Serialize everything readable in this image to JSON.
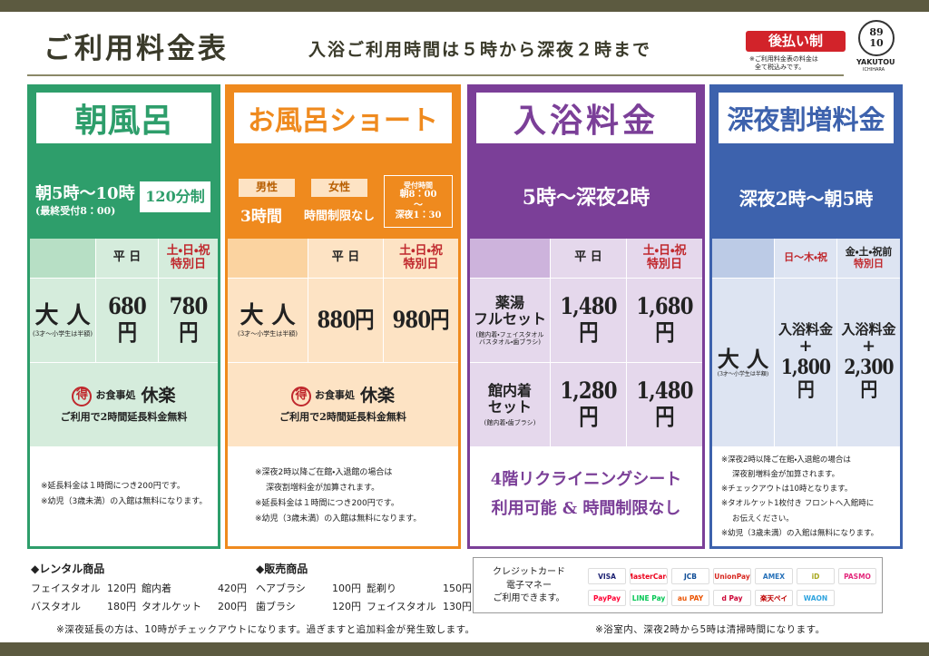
{
  "header": {
    "title": "ご利用料金表",
    "subtitle": "入浴ご利用時間は５時から深夜２時まで",
    "badge": "後払い制",
    "badge_note": [
      "※ご利用料金表の料金は",
      "全て税込みです。"
    ],
    "logo": {
      "top": "89",
      "bottom": "10",
      "name": "YAKUTOU",
      "sub": "ICHIHARA"
    }
  },
  "morning": {
    "name": "朝風呂",
    "hours": "朝5時～10時",
    "last_entry": "(最終受付8：00)",
    "limit": "120分制",
    "weekday": "平 日",
    "holiday": "土・日・祝",
    "special": "特別日",
    "adult": "大 人",
    "adult_note": "(3才～小学生は半額)",
    "price_weekday": "680円",
    "price_holiday": "780円",
    "dining": {
      "mark": "得",
      "label": "お食事処",
      "name": "休楽",
      "benefit": "ご利用で2時間延長料金無料"
    },
    "notes": [
      "※延長料金は１時間につき200円です。",
      "※幼児（3歳未満）の入館は無料になります。"
    ]
  },
  "short": {
    "name": "お風呂ショート",
    "male": "男性",
    "male_time": "3時間",
    "female": "女性",
    "female_time": "時間制限なし",
    "reception": {
      "title": "受付時間",
      "from": "朝8：00",
      "sep": "～",
      "to": "深夜1：30"
    },
    "weekday": "平 日",
    "holiday": "土・日・祝",
    "special": "特別日",
    "adult": "大 人",
    "adult_note": "(3才～小学生は半額)",
    "price_weekday": "880円",
    "price_holiday": "980円",
    "dining": {
      "mark": "得",
      "label": "お食事処",
      "name": "休楽",
      "benefit": "ご利用で2時間延長料金無料"
    },
    "notes": [
      "※深夜2時以降ご在館・入退館の場合は",
      "深夜割増料金が加算されます。",
      "※延長料金は１時間につき200円です。",
      "※幼児（3歳未満）の入館は無料になります。"
    ]
  },
  "bath": {
    "name": "入浴料金",
    "hours": "5時～深夜2時",
    "weekday": "平 日",
    "holiday": "土・日・祝",
    "special": "特別日",
    "rows": [
      {
        "name": [
          "薬湯",
          "フルセット"
        ],
        "note": [
          "(館内着・フェイスタオル",
          "バスタオル・歯ブラシ)"
        ],
        "price_weekday": "1,480円",
        "price_holiday": "1,680円"
      },
      {
        "name": [
          "館内着",
          "セット"
        ],
        "note": [
          "(館内着・歯ブラシ)"
        ],
        "price_weekday": "1,280円",
        "price_holiday": "1,480円"
      }
    ],
    "promo": [
      "4階リクライニングシート",
      "利用可能 & 時間制限なし"
    ]
  },
  "late_night": {
    "name": "深夜割増料金",
    "hours": "深夜2時～朝5時",
    "sun_thu": "日～木・祝",
    "fri_sat": "金・土・祝前",
    "special": "特別日",
    "adult": "大 人",
    "adult_note": "(3才～小学生は半額)",
    "surcharge_a": {
      "base": "入浴料金",
      "plus": "+",
      "price": "1,800円"
    },
    "surcharge_b": {
      "base": "入浴料金",
      "plus": "+",
      "price": "2,300円"
    },
    "notes": [
      "※深夜2時以降ご在館・入退館の場合は",
      "深夜割増料金が加算されます。",
      "※チェックアウトは10時となります。",
      "※タオルケット1枚付き フロントへ入館時に",
      "お伝えください。",
      "※幼児（3歳未満）の入館は無料になります。"
    ]
  },
  "rental": {
    "title": "◆レンタル商品",
    "items": [
      {
        "name": "フェイスタオル",
        "price": "120円"
      },
      {
        "name": "館内着",
        "price": "420円"
      },
      {
        "name": "バスタオル",
        "price": "180円"
      },
      {
        "name": "タオルケット",
        "price": "200円"
      }
    ]
  },
  "sales": {
    "title": "◆販売商品",
    "items": [
      {
        "name": "ヘアブラシ",
        "price": "100円"
      },
      {
        "name": "髭剃り",
        "price": "150円"
      },
      {
        "name": "歯ブラシ",
        "price": "120円"
      },
      {
        "name": "フェイスタオル",
        "price": "130円"
      }
    ]
  },
  "payment": {
    "lines": [
      "クレジットカード",
      "電子マネー",
      "ご利用できます。"
    ],
    "brands": [
      "VISA",
      "MasterCard",
      "JCB",
      "UnionPay",
      "AMEX",
      "iD",
      "PASMO",
      "PayPay",
      "LINE Pay",
      "au PAY",
      "d Pay",
      "楽天ペイ",
      "WAON"
    ]
  },
  "footer": [
    "※深夜延長の方は、10時がチェックアウトになります。過ぎますと追加料金が発生致します。",
    "※浴室内、深夜2時から5時は清掃時間になります。"
  ]
}
